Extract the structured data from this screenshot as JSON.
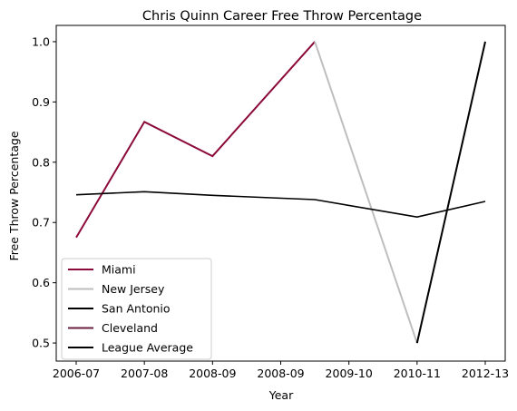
{
  "chart_data": {
    "type": "line",
    "title": "Chris Quinn Career Free Throw Percentage",
    "xlabel": "Year",
    "ylabel": "Free Throw Percentage",
    "categories": [
      "2006-07",
      "2007-08",
      "2008-09",
      "2008-09",
      "2009-10",
      "2010-11",
      "2012-13"
    ],
    "ylim": [
      0.47,
      1.027
    ],
    "yticks": [
      0.5,
      0.6,
      0.7,
      0.8,
      0.9,
      1.0
    ],
    "ytick_labels": [
      "0.5",
      "0.6",
      "0.7",
      "0.8",
      "0.9",
      "1.0"
    ],
    "grid": false,
    "legend_position": "lower-left",
    "series": [
      {
        "name": "Miami",
        "color": "#8b0a3a",
        "segments": [
          [
            0,
            0.675
          ],
          [
            1,
            0.867
          ],
          [
            2,
            0.81
          ],
          [
            3.5,
            1.0
          ]
        ]
      },
      {
        "name": "New Jersey",
        "color": "#bebebe",
        "segments": [
          [
            3.5,
            1.0
          ],
          [
            5,
            0.5
          ]
        ]
      },
      {
        "name": "San Antonio",
        "color": "#000000",
        "segments": [
          [
            5,
            0.5
          ],
          [
            6,
            1.0
          ]
        ]
      },
      {
        "name": "Cleveland",
        "color": "#6a1f3e",
        "segments": []
      },
      {
        "name": "League Average",
        "color": "#000000",
        "segments": [
          [
            0,
            0.746
          ],
          [
            1,
            0.751
          ],
          [
            2,
            0.745
          ],
          [
            3.5,
            0.738
          ],
          [
            5,
            0.709
          ],
          [
            6,
            0.735
          ]
        ]
      }
    ]
  }
}
